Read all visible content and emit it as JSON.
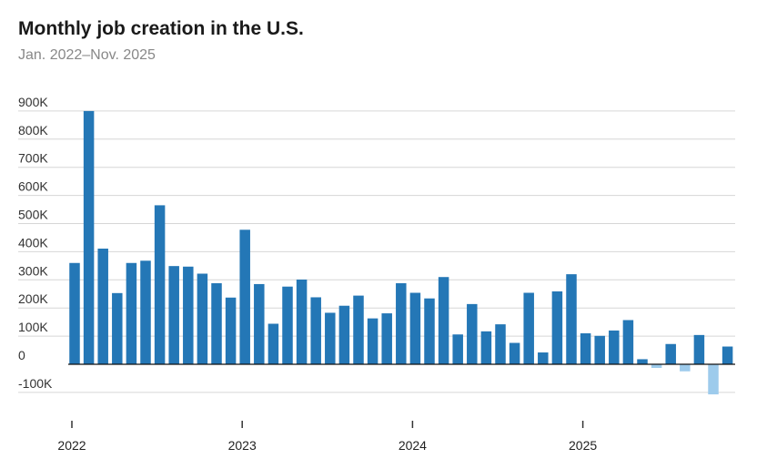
{
  "chart_data": {
    "type": "bar",
    "title": "Monthly job creation in the U.S.",
    "subtitle": "Jan. 2022–Nov. 2025",
    "xlabel": "",
    "ylabel": "",
    "ylim": [
      -100000,
      900000
    ],
    "yticks": [
      -100000,
      0,
      100000,
      200000,
      300000,
      400000,
      500000,
      600000,
      700000,
      800000,
      900000
    ],
    "ytick_labels": [
      "-100K",
      "0",
      "100K",
      "200K",
      "300K",
      "400K",
      "500K",
      "600K",
      "700K",
      "800K",
      "900K"
    ],
    "xtick_labels": [
      "2022",
      "2023",
      "2024",
      "2025"
    ],
    "grid": true,
    "colors": {
      "positive": "#2477b6",
      "negative": "#9dcbec"
    },
    "categories": [
      "2022-01",
      "2022-02",
      "2022-03",
      "2022-04",
      "2022-05",
      "2022-06",
      "2022-07",
      "2022-08",
      "2022-09",
      "2022-10",
      "2022-11",
      "2022-12",
      "2023-01",
      "2023-02",
      "2023-03",
      "2023-04",
      "2023-05",
      "2023-06",
      "2023-07",
      "2023-08",
      "2023-09",
      "2023-10",
      "2023-11",
      "2023-12",
      "2024-01",
      "2024-02",
      "2024-03",
      "2024-04",
      "2024-05",
      "2024-06",
      "2024-07",
      "2024-08",
      "2024-09",
      "2024-10",
      "2024-11",
      "2024-12",
      "2025-01",
      "2025-02",
      "2025-03",
      "2025-04",
      "2025-05",
      "2025-06",
      "2025-07",
      "2025-08",
      "2025-09",
      "2025-10",
      "2025-11"
    ],
    "values": [
      360000,
      900000,
      411000,
      253000,
      360000,
      368000,
      565000,
      349000,
      347000,
      322000,
      288000,
      237000,
      478000,
      285000,
      144000,
      276000,
      301000,
      238000,
      183000,
      208000,
      244000,
      163000,
      181000,
      288000,
      254000,
      234000,
      310000,
      106000,
      214000,
      117000,
      142000,
      76000,
      254000,
      42000,
      259000,
      320000,
      110000,
      101000,
      120000,
      157000,
      18000,
      -13000,
      72000,
      -25000,
      104000,
      -107000,
      63000
    ]
  }
}
